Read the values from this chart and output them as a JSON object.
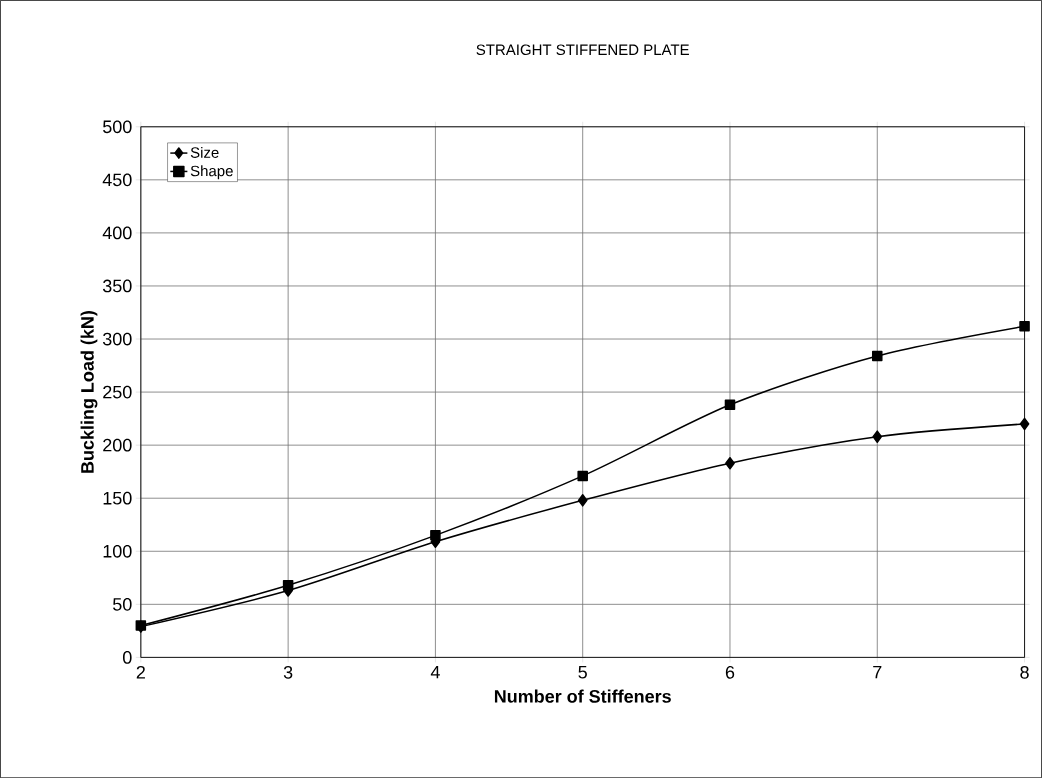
{
  "chart_data": {
    "type": "line",
    "title": "STRAIGHT STIFFENED PLATE",
    "xlabel": "Number of Stiffeners",
    "ylabel": "Buckling Load (kN)",
    "x": [
      2,
      3,
      4,
      5,
      6,
      7,
      8
    ],
    "series": [
      {
        "name": "Size",
        "color": "#000000",
        "marker": "diamond",
        "values": [
          29,
          63,
          109,
          148,
          183,
          208,
          220
        ]
      },
      {
        "name": "Shape",
        "color": "#000000",
        "marker": "square",
        "values": [
          30,
          68,
          115,
          171,
          238,
          284,
          312
        ]
      }
    ],
    "xlim": [
      2,
      8
    ],
    "xticks": [
      2,
      3,
      4,
      5,
      6,
      7,
      8
    ],
    "ylim": [
      0,
      500
    ],
    "yticks": [
      0,
      50,
      100,
      150,
      200,
      250,
      300,
      350,
      400,
      450,
      500
    ],
    "grid": true,
    "legend": "top left",
    "line_style": "solid"
  }
}
